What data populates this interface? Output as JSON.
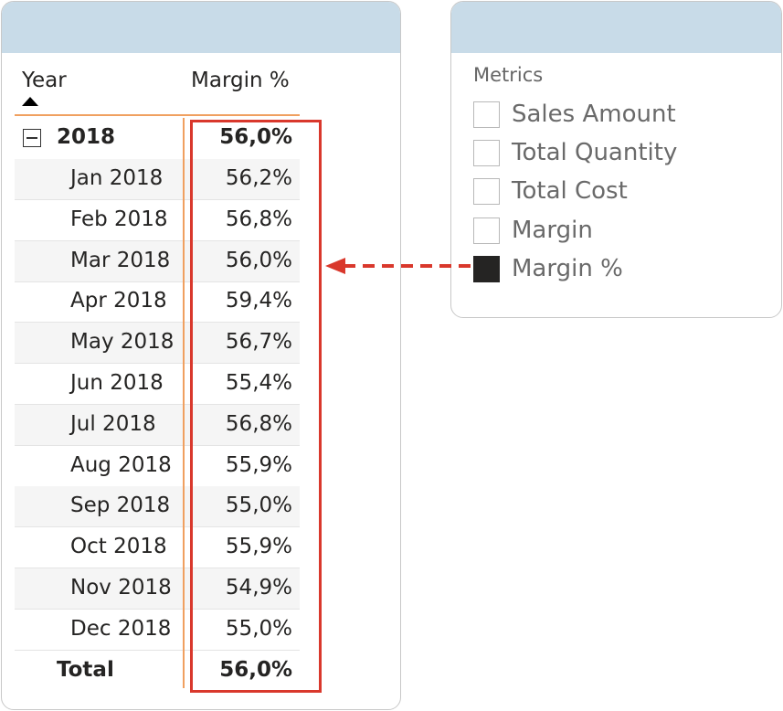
{
  "matrix": {
    "columns": {
      "year": "Year",
      "margin_pct": "Margin %"
    },
    "year_row": {
      "label": "2018",
      "value": "56,0%"
    },
    "rows": [
      {
        "label": "Jan 2018",
        "value": "56,2%"
      },
      {
        "label": "Feb 2018",
        "value": "56,8%"
      },
      {
        "label": "Mar 2018",
        "value": "56,0%"
      },
      {
        "label": "Apr 2018",
        "value": "59,4%"
      },
      {
        "label": "May 2018",
        "value": "56,7%"
      },
      {
        "label": "Jun 2018",
        "value": "55,4%"
      },
      {
        "label": "Jul 2018",
        "value": "56,8%"
      },
      {
        "label": "Aug 2018",
        "value": "55,9%"
      },
      {
        "label": "Sep 2018",
        "value": "55,0%"
      },
      {
        "label": "Oct 2018",
        "value": "55,9%"
      },
      {
        "label": "Nov 2018",
        "value": "54,9%"
      },
      {
        "label": "Dec 2018",
        "value": "55,0%"
      }
    ],
    "total_row": {
      "label": "Total",
      "value": "56,0%"
    }
  },
  "slicer": {
    "title": "Metrics",
    "items": [
      {
        "label": "Sales Amount",
        "checked": false
      },
      {
        "label": "Total Quantity",
        "checked": false
      },
      {
        "label": "Total Cost",
        "checked": false
      },
      {
        "label": "Margin",
        "checked": false
      },
      {
        "label": "Margin %",
        "checked": true
      }
    ]
  },
  "colors": {
    "header_band": "#c8dbe8",
    "accent_line": "#f0a060",
    "highlight": "#d9382c",
    "checkbox_checked": "#252423"
  }
}
